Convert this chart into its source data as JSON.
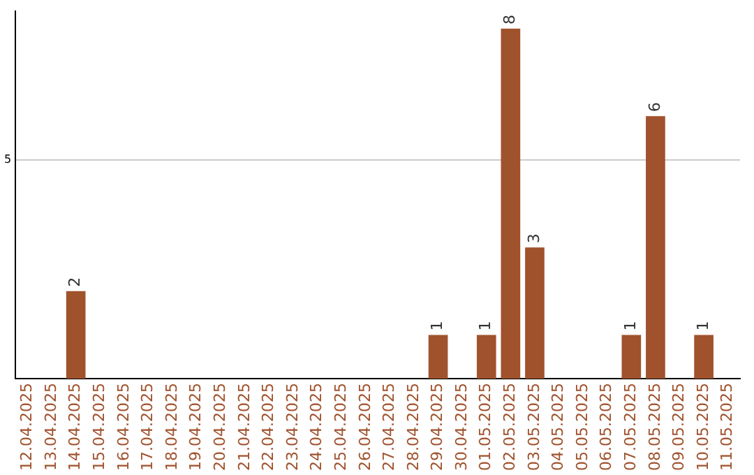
{
  "chart_data": {
    "type": "bar",
    "categories": [
      "12.04.2025",
      "13.04.2025",
      "14.04.2025",
      "15.04.2025",
      "16.04.2025",
      "17.04.2025",
      "18.04.2025",
      "19.04.2025",
      "20.04.2025",
      "21.04.2025",
      "22.04.2025",
      "23.04.2025",
      "24.04.2025",
      "25.04.2025",
      "26.04.2025",
      "27.04.2025",
      "28.04.2025",
      "29.04.2025",
      "30.04.2025",
      "01.05.2025",
      "02.05.2025",
      "03.05.2025",
      "04.05.2025",
      "05.05.2025",
      "06.05.2025",
      "07.05.2025",
      "08.05.2025",
      "09.05.2025",
      "10.05.2025",
      "11.05.2025"
    ],
    "values": [
      null,
      null,
      2,
      null,
      null,
      null,
      null,
      null,
      null,
      null,
      null,
      null,
      null,
      null,
      null,
      null,
      null,
      1,
      null,
      1,
      8,
      3,
      null,
      null,
      null,
      1,
      6,
      null,
      1,
      null
    ],
    "color": "#a0522d",
    "ylim": [
      0,
      8.4
    ],
    "yticks": [
      5
    ],
    "grid": "y",
    "legend": false,
    "data_labels": true
  }
}
